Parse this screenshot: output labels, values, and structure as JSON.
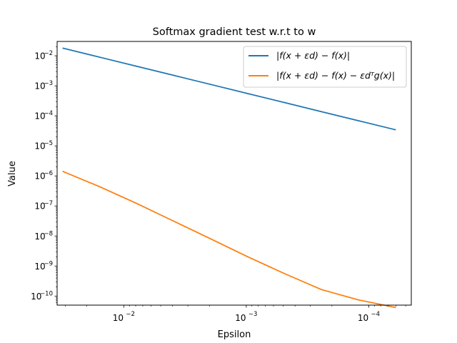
{
  "chart_data": {
    "type": "line",
    "title": "Softmax gradient test w.r.t to w",
    "xlabel": "Epsilon",
    "ylabel": "Value",
    "x_scale": "log",
    "y_scale": "log",
    "x_inverted": true,
    "xlim": [
      0.035,
      4.5e-05
    ],
    "ylim": [
      5e-11,
      0.03
    ],
    "x_ticks": [
      {
        "value": 0.01,
        "base": "10",
        "exp": "−2"
      },
      {
        "value": 0.001,
        "base": "10",
        "exp": "−3"
      },
      {
        "value": 0.0001,
        "base": "10",
        "exp": "−4"
      }
    ],
    "y_ticks": [
      {
        "value": 1e-10,
        "base": "10",
        "exp": "−10"
      },
      {
        "value": 1e-09,
        "base": "10",
        "exp": "−9"
      },
      {
        "value": 1e-08,
        "base": "10",
        "exp": "−8"
      },
      {
        "value": 1e-07,
        "base": "10",
        "exp": "−7"
      },
      {
        "value": 1e-06,
        "base": "10",
        "exp": "−6"
      },
      {
        "value": 1e-05,
        "base": "10",
        "exp": "−5"
      },
      {
        "value": 0.0001,
        "base": "10",
        "exp": "−4"
      },
      {
        "value": 0.001,
        "base": "10",
        "exp": "−3"
      },
      {
        "value": 0.01,
        "base": "10",
        "exp": "−2"
      }
    ],
    "grid": false,
    "legend_position": "top-right",
    "series": [
      {
        "name": "|f(x + εd) − f(x)|",
        "color": "#1f77b4",
        "points": [
          [
            0.03125,
            0.0178
          ],
          [
            0.0156,
            0.0089
          ],
          [
            0.0078,
            0.00445
          ],
          [
            0.0039,
            0.00222
          ],
          [
            0.00195,
            0.00111
          ],
          [
            0.000977,
            0.000555
          ],
          [
            0.000488,
            0.000277
          ],
          [
            0.000244,
            0.000138
          ],
          [
            0.000122,
            6.92e-05
          ],
          [
            6.1e-05,
            3.46e-05
          ]
        ]
      },
      {
        "name": "|f(x + εd) − f(x) − εdᵀg(x)|",
        "color": "#ff7f0e",
        "points": [
          [
            0.03125,
            1.4e-06
          ],
          [
            0.0156,
            4.3e-07
          ],
          [
            0.0078,
            1.2e-07
          ],
          [
            0.0039,
            3.1e-08
          ],
          [
            0.00195,
            8e-09
          ],
          [
            0.000977,
            2.05e-09
          ],
          [
            0.000488,
            5.6e-10
          ],
          [
            0.000244,
            1.65e-10
          ],
          [
            0.000122,
            7.5e-11
          ],
          [
            6.1e-05,
            4.2e-11
          ]
        ]
      }
    ]
  }
}
